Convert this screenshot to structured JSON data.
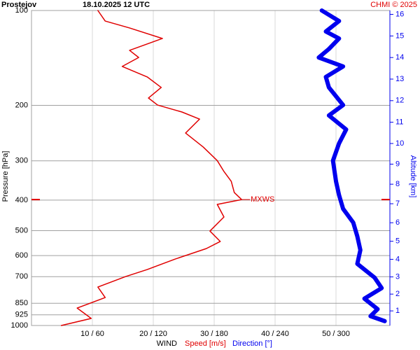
{
  "chart_data": {
    "type": "profile",
    "title": "Prostejov",
    "subtitle": "18.10.2025 12 UTC",
    "credit": "CHMI © 2025",
    "ylabel": "Pressure [hPa]",
    "y2label": "Altitude [km]",
    "xlabel": "WIND",
    "ylog": true,
    "ylim": [
      1000,
      100
    ],
    "yticks": [
      100,
      200,
      300,
      400,
      500,
      600,
      700,
      850,
      925,
      1000
    ],
    "xlim": [
      0,
      58.85
    ],
    "x2lim": [
      0,
      353.1
    ],
    "xticks": [
      {
        "value": 10,
        "label": "10 / 60"
      },
      {
        "value": 20,
        "label": "20 / 120"
      },
      {
        "value": 30,
        "label": "30 / 180"
      },
      {
        "value": 40,
        "label": "40 / 240"
      },
      {
        "value": 50,
        "label": "50 / 300"
      }
    ],
    "y2ticks": [
      1,
      2,
      3,
      4,
      5,
      6,
      7,
      8,
      9,
      10,
      11,
      12,
      13,
      14,
      15,
      16
    ],
    "grid": true,
    "annotation": {
      "text": "MXWS",
      "pressure": 398.3
    },
    "series": [
      {
        "name": "Speed [m/s]",
        "color": "#e00000",
        "axis": "x",
        "pressure": [
          100,
          108,
          113.6,
          122.7,
          133.8,
          141,
          150.5,
          162.5,
          175.5,
          189.6,
          199.6,
          210,
          221.2,
          244.9,
          271.3,
          299.6,
          324.4,
          348.6,
          378.3,
          398.3,
          412.7,
          452.5,
          501.3,
          541.1,
          569.9,
          615.2,
          664.2,
          698.7,
          755,
          815.3,
          880.4,
          949.7,
          1000
        ],
        "values": [
          10.9,
          12.1,
          16.1,
          21.5,
          16.1,
          17.6,
          14.9,
          19.0,
          21.3,
          19.2,
          20.7,
          24.7,
          27.6,
          25.3,
          28.2,
          30.5,
          31.6,
          32.8,
          33.3,
          34.5,
          30.5,
          31.6,
          29.3,
          31.0,
          28.7,
          23.6,
          19.0,
          15.5,
          10.9,
          12.1,
          7.5,
          9.8,
          4.9
        ]
      },
      {
        "name": "Direction [°]",
        "color": "#0000ee",
        "axis": "x2",
        "pressure": [
          100,
          108,
          116.6,
          122.7,
          132.5,
          141,
          150.5,
          162.5,
          175.5,
          199.6,
          215.4,
          238.6,
          264.2,
          299.6,
          348.6,
          385.5,
          426.2,
          471.3,
          521.1,
          576.2,
          637.1,
          704.5,
          760.8,
          821.6,
          887.3,
          933.8,
          968.5
        ],
        "values": [
          286,
          303,
          290,
          303,
          293,
          283,
          307,
          290,
          293,
          307,
          293,
          310,
          303,
          297,
          300,
          303,
          307,
          317,
          321,
          324,
          321,
          338,
          345,
          328,
          341,
          334,
          348
        ]
      }
    ]
  }
}
